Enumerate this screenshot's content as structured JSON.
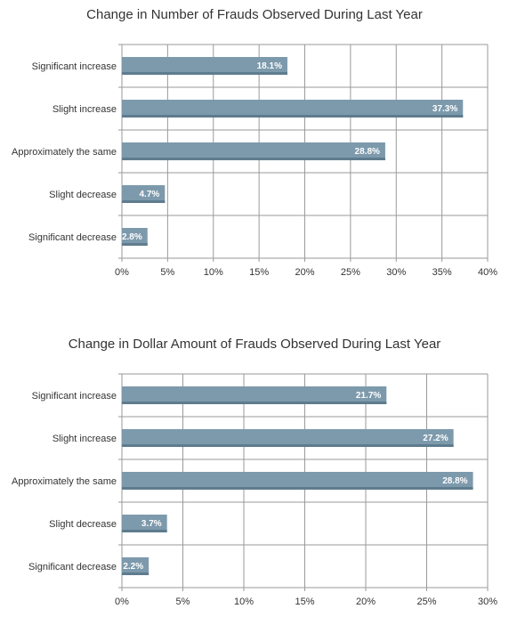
{
  "colors": {
    "bar": "#7d9aac",
    "bar_shadow": "#5f7c8e",
    "grid": "#9a9a9a"
  },
  "chart_data": [
    {
      "type": "bar",
      "orientation": "horizontal",
      "title": "Change in Number of Frauds Observed During Last Year",
      "categories": [
        "Significant increase",
        "Slight increase",
        "Approximately the same",
        "Slight decrease",
        "Significant decrease"
      ],
      "values": [
        18.1,
        37.3,
        28.8,
        4.7,
        2.8
      ],
      "value_labels": [
        "18.1%",
        "37.3%",
        "28.8%",
        "4.7%",
        "2.8%"
      ],
      "xlim": [
        0,
        40
      ],
      "xticks": [
        0,
        5,
        10,
        15,
        20,
        25,
        30,
        35,
        40
      ],
      "xtick_labels": [
        "0%",
        "5%",
        "10%",
        "15%",
        "20%",
        "25%",
        "30%",
        "35%",
        "40%"
      ],
      "grid": true
    },
    {
      "type": "bar",
      "orientation": "horizontal",
      "title": "Change in Dollar Amount of Frauds Observed During Last Year",
      "categories": [
        "Significant increase",
        "Slight increase",
        "Approximately the same",
        "Slight decrease",
        "Significant decrease"
      ],
      "values": [
        21.7,
        27.2,
        28.8,
        3.7,
        2.2
      ],
      "value_labels": [
        "21.7%",
        "27.2%",
        "28.8%",
        "3.7%",
        "2.2%"
      ],
      "xlim": [
        0,
        30
      ],
      "xticks": [
        0,
        5,
        10,
        15,
        20,
        25,
        30
      ],
      "xtick_labels": [
        "0%",
        "5%",
        "10%",
        "15%",
        "20%",
        "25%",
        "30%"
      ],
      "grid": true
    }
  ]
}
